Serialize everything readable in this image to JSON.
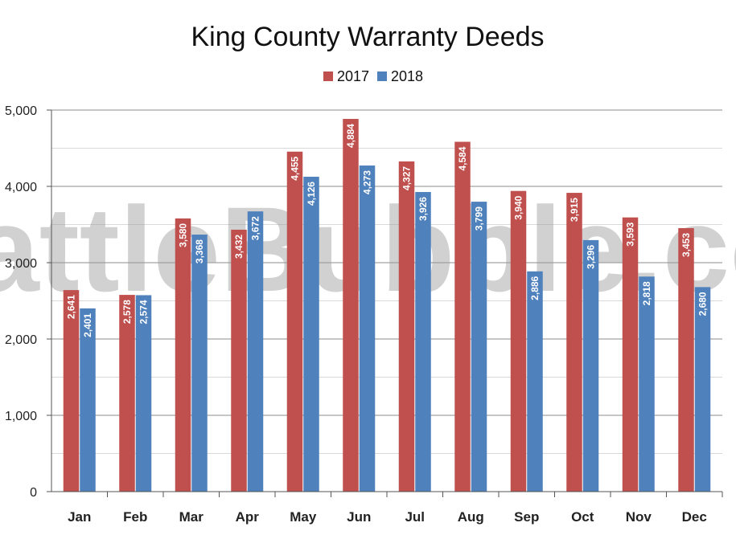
{
  "chart_data": {
    "type": "bar",
    "title": "King County Warranty Deeds",
    "watermark": "SeattleBubble.com",
    "categories": [
      "Jan",
      "Feb",
      "Mar",
      "Apr",
      "May",
      "Jun",
      "Jul",
      "Aug",
      "Sep",
      "Oct",
      "Nov",
      "Dec"
    ],
    "series": [
      {
        "name": "2017",
        "color": "#c0504d",
        "values": [
          2641,
          2578,
          3580,
          3432,
          4455,
          4884,
          4327,
          4584,
          3940,
          3915,
          3593,
          3453
        ],
        "labels": [
          "2,641",
          "2,578",
          "3,580",
          "3,432",
          "4,455",
          "4,884",
          "4,327",
          "4,584",
          "3,940",
          "3,915",
          "3,593",
          "3,453"
        ]
      },
      {
        "name": "2018",
        "color": "#4f81bd",
        "values": [
          2401,
          2574,
          3368,
          3672,
          4126,
          4273,
          3926,
          3799,
          2886,
          3296,
          2818,
          2680
        ],
        "labels": [
          "2,401",
          "2,574",
          "3,368",
          "3,672",
          "4,126",
          "4,273",
          "3,926",
          "3,799",
          "2,886",
          "3,296",
          "2,818",
          "2,680"
        ]
      }
    ],
    "yticks": [
      0,
      1000,
      2000,
      3000,
      4000,
      5000
    ],
    "ytick_labels": [
      "0",
      "1,000",
      "2,000",
      "3,000",
      "4,000",
      "5,000"
    ],
    "ylim": [
      0,
      5000
    ],
    "grid": true,
    "legend_position": "top-center",
    "xlabel": "",
    "ylabel": ""
  }
}
